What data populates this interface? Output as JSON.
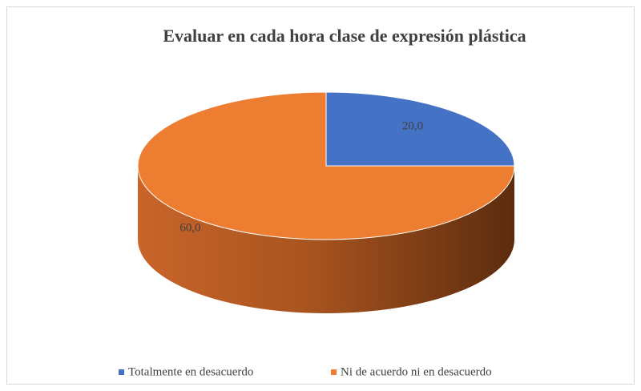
{
  "chart_data": {
    "type": "pie",
    "title": "Evaluar en cada hora clase de expresión plástica",
    "categories": [
      "Totalmente en desacuerdo",
      "Ni de acuerdo ni en desacuerdo"
    ],
    "values": [
      20,
      60
    ],
    "value_labels": [
      "20,0",
      "60,0"
    ],
    "colors": [
      "#4472c4",
      "#ed7d31"
    ],
    "legend": "bottom",
    "three_d": true
  }
}
